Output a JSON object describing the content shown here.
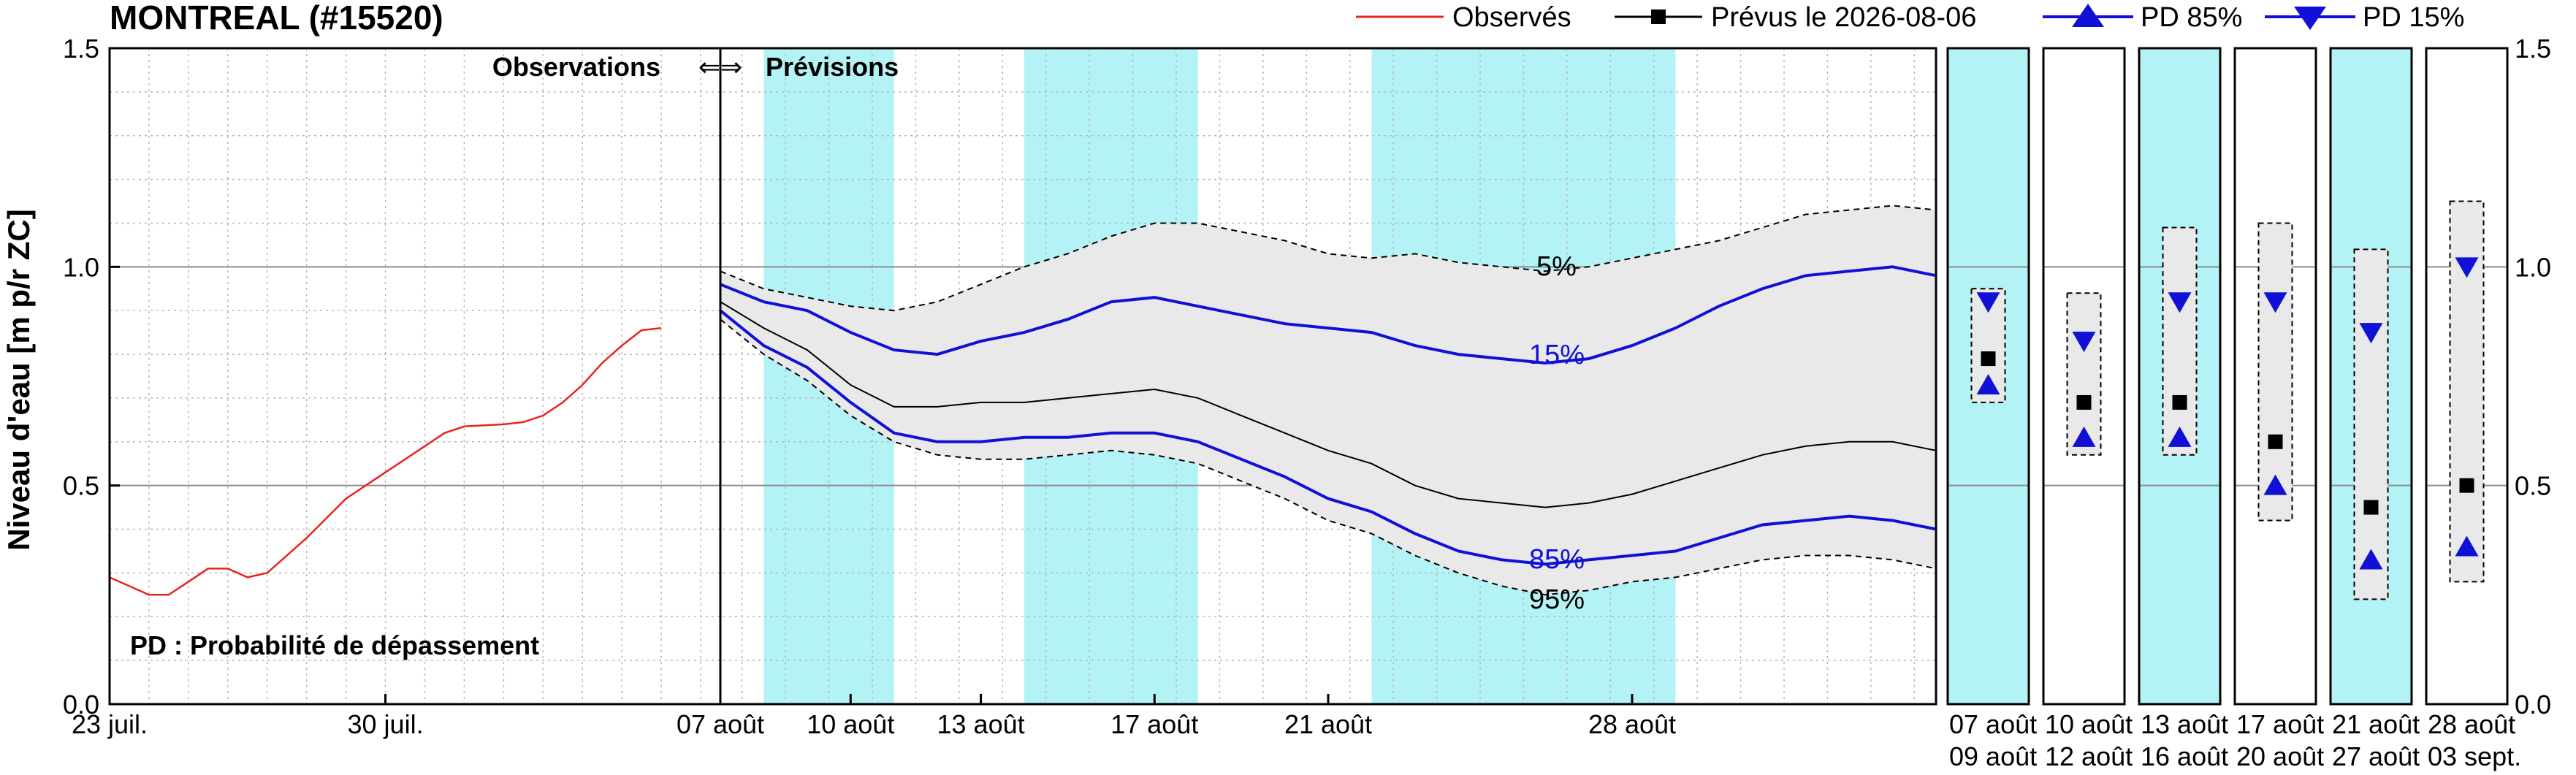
{
  "title": "MONTREAL (#15520)",
  "legend": {
    "observed": "Observés",
    "forecast": "Prévus le 2026-08-06",
    "pd85": "PD 85%",
    "pd15": "PD 15%"
  },
  "labels": {
    "ylabel": "Niveau d'eau [m p/r ZC]",
    "obs_section": "Observations",
    "arrows": "⇐⇒",
    "fc_section": "Prévisions",
    "pd_note": "PD : Probabilité de dépassement",
    "p5": "5%",
    "p15": "15%",
    "p85": "85%",
    "p95": "95%"
  },
  "colors": {
    "observed": "#e8231f",
    "percentile": "#1010d6",
    "band": "#e9e9e9",
    "highlight": "#b3f3f6",
    "forecast": "#000000"
  },
  "chart_data": {
    "type": "line",
    "x_unit": "day",
    "ylim": [
      0.0,
      1.5
    ],
    "yticks": [
      "0.0",
      "0.5",
      "1.0",
      "1.5"
    ],
    "xlim_obs": [
      0,
      15.5
    ],
    "xlim_fc": [
      15.5,
      43.5
    ],
    "xticks_obs": [
      {
        "x": 0,
        "label": "23 juil."
      },
      {
        "x": 7,
        "label": "30 juil."
      }
    ],
    "xticks_fc": [
      {
        "x": 15.5,
        "label": "07 août"
      },
      {
        "x": 18.5,
        "label": "10 août"
      },
      {
        "x": 21.5,
        "label": "13 août"
      },
      {
        "x": 25.5,
        "label": "17 août"
      },
      {
        "x": 29.5,
        "label": "21 août"
      },
      {
        "x": 36.5,
        "label": "28 août"
      }
    ],
    "highlight_ranges": [
      [
        16.5,
        19.5
      ],
      [
        22.5,
        26.5
      ],
      [
        30.5,
        37.5
      ]
    ],
    "observed": [
      [
        0,
        0.29
      ],
      [
        1,
        0.25
      ],
      [
        1.5,
        0.25
      ],
      [
        2,
        0.28
      ],
      [
        2.5,
        0.31
      ],
      [
        3,
        0.31
      ],
      [
        3.5,
        0.29
      ],
      [
        4,
        0.3
      ],
      [
        5,
        0.38
      ],
      [
        6,
        0.47
      ],
      [
        7,
        0.53
      ],
      [
        8,
        0.59
      ],
      [
        8.5,
        0.62
      ],
      [
        9,
        0.635
      ],
      [
        10,
        0.64
      ],
      [
        10.5,
        0.645
      ],
      [
        11,
        0.66
      ],
      [
        11.5,
        0.69
      ],
      [
        12,
        0.73
      ],
      [
        12.5,
        0.78
      ],
      [
        13,
        0.82
      ],
      [
        13.5,
        0.855
      ],
      [
        14,
        0.86
      ]
    ],
    "forecast": [
      [
        15.5,
        0.92
      ],
      [
        16.5,
        0.86
      ],
      [
        17.5,
        0.81
      ],
      [
        18.5,
        0.73
      ],
      [
        19.5,
        0.68
      ],
      [
        20.5,
        0.68
      ],
      [
        21.5,
        0.69
      ],
      [
        22.5,
        0.69
      ],
      [
        23.5,
        0.7
      ],
      [
        24.5,
        0.71
      ],
      [
        25.5,
        0.72
      ],
      [
        26.5,
        0.7
      ],
      [
        27.5,
        0.66
      ],
      [
        28.5,
        0.62
      ],
      [
        29.5,
        0.58
      ],
      [
        30.5,
        0.55
      ],
      [
        31.5,
        0.5
      ],
      [
        32.5,
        0.47
      ],
      [
        33.5,
        0.46
      ],
      [
        34.5,
        0.45
      ],
      [
        35.5,
        0.46
      ],
      [
        36.5,
        0.48
      ],
      [
        37.5,
        0.51
      ],
      [
        38.5,
        0.54
      ],
      [
        39.5,
        0.57
      ],
      [
        40.5,
        0.59
      ],
      [
        41.5,
        0.6
      ],
      [
        42.5,
        0.6
      ],
      [
        43.5,
        0.58
      ]
    ],
    "p5": [
      [
        15.5,
        0.99
      ],
      [
        16.5,
        0.95
      ],
      [
        17.5,
        0.93
      ],
      [
        18.5,
        0.91
      ],
      [
        19.5,
        0.9
      ],
      [
        20.5,
        0.92
      ],
      [
        21.5,
        0.96
      ],
      [
        22.5,
        1.0
      ],
      [
        23.5,
        1.03
      ],
      [
        24.5,
        1.07
      ],
      [
        25.5,
        1.1
      ],
      [
        26.5,
        1.1
      ],
      [
        27.5,
        1.08
      ],
      [
        28.5,
        1.06
      ],
      [
        29.5,
        1.03
      ],
      [
        30.5,
        1.02
      ],
      [
        31.5,
        1.03
      ],
      [
        32.5,
        1.01
      ],
      [
        33.5,
        1.0
      ],
      [
        34.5,
        0.99
      ],
      [
        35.5,
        1.0
      ],
      [
        36.5,
        1.02
      ],
      [
        37.5,
        1.04
      ],
      [
        38.5,
        1.06
      ],
      [
        39.5,
        1.09
      ],
      [
        40.5,
        1.12
      ],
      [
        41.5,
        1.13
      ],
      [
        42.5,
        1.14
      ],
      [
        43.5,
        1.13
      ]
    ],
    "p15": [
      [
        15.5,
        0.96
      ],
      [
        16.5,
        0.92
      ],
      [
        17.5,
        0.9
      ],
      [
        18.5,
        0.85
      ],
      [
        19.5,
        0.81
      ],
      [
        20.5,
        0.8
      ],
      [
        21.5,
        0.83
      ],
      [
        22.5,
        0.85
      ],
      [
        23.5,
        0.88
      ],
      [
        24.5,
        0.92
      ],
      [
        25.5,
        0.93
      ],
      [
        26.5,
        0.91
      ],
      [
        27.5,
        0.89
      ],
      [
        28.5,
        0.87
      ],
      [
        29.5,
        0.86
      ],
      [
        30.5,
        0.85
      ],
      [
        31.5,
        0.82
      ],
      [
        32.5,
        0.8
      ],
      [
        33.5,
        0.79
      ],
      [
        34.5,
        0.78
      ],
      [
        35.5,
        0.79
      ],
      [
        36.5,
        0.82
      ],
      [
        37.5,
        0.86
      ],
      [
        38.5,
        0.91
      ],
      [
        39.5,
        0.95
      ],
      [
        40.5,
        0.98
      ],
      [
        41.5,
        0.99
      ],
      [
        42.5,
        1.0
      ],
      [
        43.5,
        0.98
      ]
    ],
    "p85": [
      [
        15.5,
        0.9
      ],
      [
        16.5,
        0.82
      ],
      [
        17.5,
        0.77
      ],
      [
        18.5,
        0.69
      ],
      [
        19.5,
        0.62
      ],
      [
        20.5,
        0.6
      ],
      [
        21.5,
        0.6
      ],
      [
        22.5,
        0.61
      ],
      [
        23.5,
        0.61
      ],
      [
        24.5,
        0.62
      ],
      [
        25.5,
        0.62
      ],
      [
        26.5,
        0.6
      ],
      [
        27.5,
        0.56
      ],
      [
        28.5,
        0.52
      ],
      [
        29.5,
        0.47
      ],
      [
        30.5,
        0.44
      ],
      [
        31.5,
        0.39
      ],
      [
        32.5,
        0.35
      ],
      [
        33.5,
        0.33
      ],
      [
        34.5,
        0.32
      ],
      [
        35.5,
        0.33
      ],
      [
        36.5,
        0.34
      ],
      [
        37.5,
        0.35
      ],
      [
        38.5,
        0.38
      ],
      [
        39.5,
        0.41
      ],
      [
        40.5,
        0.42
      ],
      [
        41.5,
        0.43
      ],
      [
        42.5,
        0.42
      ],
      [
        43.5,
        0.4
      ]
    ],
    "p95": [
      [
        15.5,
        0.88
      ],
      [
        16.5,
        0.8
      ],
      [
        17.5,
        0.74
      ],
      [
        18.5,
        0.66
      ],
      [
        19.5,
        0.6
      ],
      [
        20.5,
        0.57
      ],
      [
        21.5,
        0.56
      ],
      [
        22.5,
        0.56
      ],
      [
        23.5,
        0.57
      ],
      [
        24.5,
        0.58
      ],
      [
        25.5,
        0.57
      ],
      [
        26.5,
        0.55
      ],
      [
        27.5,
        0.51
      ],
      [
        28.5,
        0.47
      ],
      [
        29.5,
        0.42
      ],
      [
        30.5,
        0.39
      ],
      [
        31.5,
        0.34
      ],
      [
        32.5,
        0.3
      ],
      [
        33.5,
        0.27
      ],
      [
        34.5,
        0.25
      ],
      [
        35.5,
        0.26
      ],
      [
        36.5,
        0.28
      ],
      [
        37.5,
        0.29
      ],
      [
        38.5,
        0.31
      ],
      [
        39.5,
        0.33
      ],
      [
        40.5,
        0.34
      ],
      [
        41.5,
        0.34
      ],
      [
        42.5,
        0.33
      ],
      [
        43.5,
        0.31
      ]
    ],
    "weekly": [
      {
        "line1": "07  août",
        "line2": "09  août",
        "highlight": true,
        "low": 0.69,
        "high": 0.95,
        "pd15": 0.92,
        "forecast": 0.79,
        "pd85": 0.73
      },
      {
        "line1": "10  août",
        "line2": "12  août",
        "highlight": false,
        "low": 0.57,
        "high": 0.94,
        "pd15": 0.83,
        "forecast": 0.69,
        "pd85": 0.61
      },
      {
        "line1": "13  août",
        "line2": "16  août",
        "highlight": true,
        "low": 0.57,
        "high": 1.09,
        "pd15": 0.92,
        "forecast": 0.69,
        "pd85": 0.61
      },
      {
        "line1": "17  août",
        "line2": "20  août",
        "highlight": false,
        "low": 0.42,
        "high": 1.1,
        "pd15": 0.92,
        "forecast": 0.6,
        "pd85": 0.5
      },
      {
        "line1": "21  août",
        "line2": "27  août",
        "highlight": true,
        "low": 0.24,
        "high": 1.04,
        "pd15": 0.85,
        "forecast": 0.45,
        "pd85": 0.33
      },
      {
        "line1": "28  août",
        "line2": "03  sept.",
        "highlight": false,
        "low": 0.28,
        "high": 1.15,
        "pd15": 1.0,
        "forecast": 0.5,
        "pd85": 0.36
      }
    ]
  }
}
